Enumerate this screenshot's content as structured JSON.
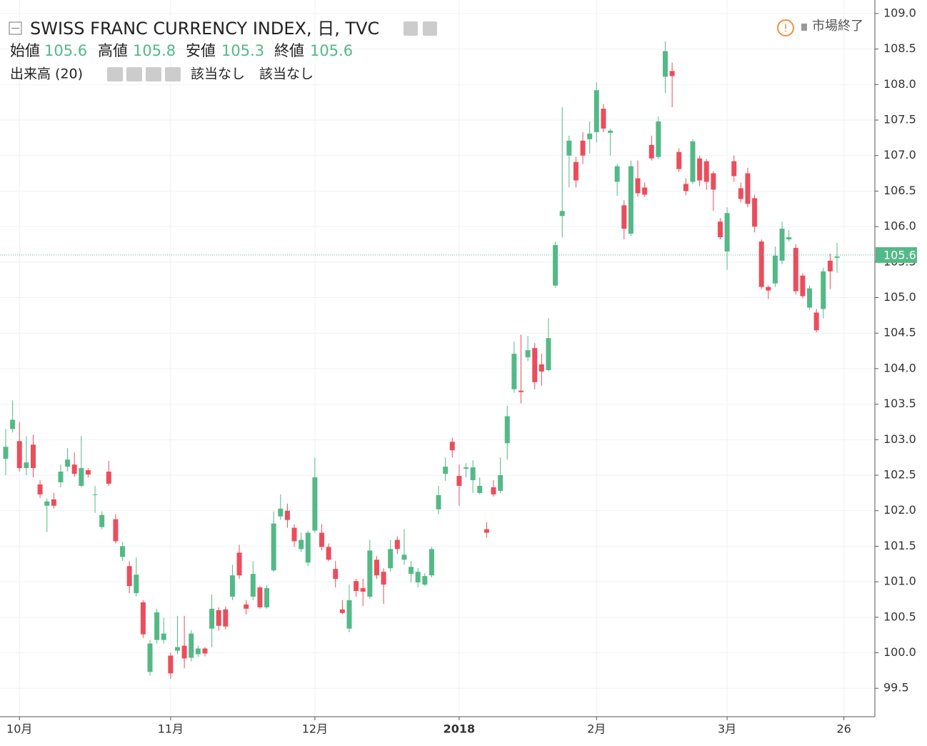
{
  "chart_data": {
    "type": "candlestick",
    "title": "SWISS FRANC CURRENCY INDEX, 日, TVC",
    "ohlc_header": [
      {
        "label": "始値",
        "value": 105.6
      },
      {
        "label": "高値",
        "value": 105.8
      },
      {
        "label": "安値",
        "value": 105.3
      },
      {
        "label": "終値",
        "value": 105.6
      }
    ],
    "indicator": "出来高 (20)",
    "indicator_values": [
      "該当なし",
      "該当なし"
    ],
    "status": "市場終了",
    "up_color": "#53b987",
    "down_color": "#eb4d5c",
    "grid": true,
    "ylim": [
      99.1,
      109.19
    ],
    "yticks": [
      99.5,
      {
        "value": 100,
        "label": "100.0"
      },
      100.5,
      {
        "value": 101,
        "label": "101.0"
      },
      101.5,
      {
        "value": 102,
        "label": "102.0"
      },
      102.5,
      {
        "value": 103,
        "label": "103.0"
      },
      103.5,
      {
        "value": 104,
        "label": "104.0"
      },
      104.5,
      {
        "value": 105,
        "label": "105.0"
      },
      105.5,
      {
        "value": 106,
        "label": "106.0"
      },
      106.5,
      {
        "value": 107,
        "label": "107.0"
      },
      107.5,
      {
        "value": 108,
        "label": "108.0"
      },
      108.5,
      {
        "value": 109,
        "label": "109.0"
      }
    ],
    "last_price": 105.6,
    "categories": [
      null,
      null,
      "10月",
      null,
      null,
      null,
      null,
      null,
      null,
      null,
      null,
      null,
      null,
      null,
      null,
      null,
      null,
      null,
      null,
      null,
      null,
      null,
      null,
      null,
      "11月",
      null,
      null,
      null,
      null,
      null,
      null,
      null,
      null,
      null,
      null,
      null,
      null,
      null,
      null,
      null,
      null,
      null,
      null,
      null,
      null,
      "12月",
      null,
      null,
      null,
      null,
      null,
      null,
      null,
      null,
      null,
      null,
      null,
      null,
      null,
      null,
      null,
      null,
      null,
      null,
      null,
      null,
      "2018",
      null,
      null,
      null,
      null,
      null,
      null,
      null,
      null,
      null,
      null,
      null,
      null,
      null,
      null,
      null,
      null,
      null,
      null,
      null,
      "2月",
      null,
      null,
      null,
      null,
      null,
      null,
      null,
      null,
      null,
      null,
      null,
      null,
      null,
      null,
      null,
      null,
      null,
      null,
      "3月",
      null,
      null,
      null,
      null,
      null,
      null,
      null,
      null,
      null,
      null,
      null,
      null,
      null,
      null,
      null,
      null,
      "26"
    ],
    "open": [
      102.73,
      103.15,
      102.98,
      102.6,
      102.93,
      102.37,
      102.07,
      102.16,
      102.4,
      102.62,
      102.65,
      102.35,
      102.57,
      102.22,
      101.77,
      102.55,
      101.88,
      101.35,
      101.22,
      100.84,
      100.71,
      99.73,
      100.18,
      100.18,
      99.96,
      100.03,
      100.1,
      99.93,
      99.98,
      100.06,
      100.34,
      100.6,
      100.61,
      100.79,
      101.41,
      100.68,
      100.79,
      100.92,
      100.64,
      101.16,
      101.92,
      102.0,
      101.76,
      101.46,
      101.27,
      101.72,
      101.69,
      101.49,
      101.18,
      100.61,
      100.34,
      101.01,
      100.91,
      100.79,
      101.31,
      101.14,
      101.19,
      101.59,
      101.31,
      101.11,
      100.99,
      100.96,
      101.09,
      102.02,
      102.52,
      102.97,
      102.49,
      102.59,
      102.43,
      102.25,
      101.74,
      102.33,
      102.28,
      102.95,
      103.71,
      103.69,
      104.16,
      104.29,
      104.06,
      103.98,
      105.17,
      106.15,
      107.0,
      106.91,
      107.21,
      107.23,
      107.33,
      107.66,
      107.32,
      106.63,
      106.3,
      105.9,
      106.68,
      106.55,
      107.15,
      106.98,
      108.11,
      108.19,
      107.05,
      106.6,
      106.63,
      106.96,
      106.92,
      106.75,
      106.07,
      105.65,
      106.92,
      106.54,
      106.75,
      106.4,
      105.79,
      105.15,
      105.2,
      105.52,
      105.82,
      105.7,
      105.31,
      104.86,
      104.79,
      104.84,
      105.52,
      105.56,
      null
    ],
    "high": [
      103.15,
      103.55,
      103.25,
      103.05,
      103.07,
      102.43,
      102.17,
      102.25,
      102.65,
      102.88,
      102.82,
      103.05,
      102.6,
      102.35,
      101.99,
      102.7,
      101.95,
      101.56,
      101.29,
      101.34,
      100.74,
      100.18,
      100.62,
      100.49,
      100.0,
      100.52,
      100.52,
      100.32,
      100.1,
      100.08,
      100.82,
      100.64,
      100.65,
      101.24,
      101.52,
      100.74,
      101.29,
      100.94,
      100.95,
      101.99,
      102.23,
      102.1,
      101.81,
      101.69,
      101.72,
      102.75,
      101.81,
      101.54,
      101.29,
      100.74,
      100.96,
      101.04,
      101.04,
      101.59,
      101.36,
      101.19,
      101.59,
      101.64,
      101.74,
      101.29,
      101.19,
      101.12,
      101.49,
      102.35,
      102.75,
      103.03,
      102.65,
      102.67,
      102.71,
      102.47,
      101.84,
      102.43,
      102.75,
      103.48,
      104.38,
      104.48,
      104.46,
      104.36,
      104.21,
      104.71,
      105.79,
      107.68,
      107.28,
      106.98,
      107.33,
      107.48,
      108.03,
      107.73,
      107.38,
      106.88,
      106.37,
      106.93,
      106.93,
      106.62,
      107.28,
      107.55,
      108.61,
      108.31,
      107.1,
      106.68,
      107.23,
      107.0,
      106.95,
      106.78,
      106.12,
      106.27,
      107.0,
      106.62,
      106.83,
      106.45,
      105.82,
      105.17,
      105.72,
      106.07,
      105.95,
      105.75,
      105.34,
      105.17,
      104.84,
      105.42,
      105.62,
      105.77,
      null
    ],
    "low": [
      102.5,
      103.1,
      102.55,
      102.5,
      102.47,
      102.18,
      101.7,
      102.03,
      102.33,
      102.55,
      102.48,
      102.33,
      102.47,
      101.97,
      101.74,
      102.35,
      101.54,
      101.29,
      100.84,
      100.79,
      100.21,
      99.68,
      100.13,
      100.13,
      99.63,
      99.98,
      99.78,
      99.88,
      99.94,
      99.95,
      100.08,
      100.31,
      100.33,
      100.74,
      101.04,
      100.54,
      100.74,
      100.62,
      100.62,
      101.14,
      101.87,
      101.76,
      101.49,
      101.42,
      101.22,
      101.69,
      101.44,
      101.29,
      100.92,
      100.54,
      100.29,
      100.79,
      100.66,
      100.76,
      101.04,
      100.69,
      101.14,
      101.39,
      101.24,
      100.99,
      100.92,
      100.94,
      101.06,
      101.95,
      102.42,
      102.75,
      102.07,
      102.47,
      102.25,
      102.23,
      101.62,
      102.2,
      102.25,
      102.72,
      103.66,
      103.51,
      104.11,
      103.71,
      103.76,
      103.96,
      105.14,
      105.85,
      106.55,
      106.55,
      106.88,
      107.03,
      107.18,
      107.33,
      107.0,
      106.43,
      105.82,
      105.87,
      106.42,
      106.42,
      106.93,
      106.95,
      107.88,
      107.68,
      106.77,
      106.44,
      106.6,
      106.57,
      106.52,
      106.22,
      105.82,
      105.39,
      106.63,
      106.34,
      106.27,
      105.92,
      105.12,
      104.98,
      105.15,
      105.47,
      105.79,
      105.04,
      104.99,
      104.83,
      104.51,
      104.71,
      105.12,
      105.35,
      null
    ],
    "close": [
      102.9,
      103.28,
      102.6,
      102.68,
      102.6,
      102.23,
      102.13,
      102.07,
      102.55,
      102.72,
      102.52,
      102.6,
      102.51,
      102.23,
      101.94,
      102.38,
      101.57,
      101.5,
      100.94,
      101.1,
      100.26,
      100.13,
      100.57,
      100.27,
      99.71,
      100.08,
      99.92,
      100.27,
      100.06,
      99.99,
      100.62,
      100.38,
      100.37,
      101.09,
      101.09,
      100.62,
      101.11,
      100.64,
      100.91,
      101.82,
      102.03,
      101.87,
      101.57,
      101.59,
      101.69,
      102.47,
      101.49,
      101.31,
      101.04,
      100.56,
      100.74,
      100.87,
      100.86,
      101.44,
      101.09,
      100.96,
      101.46,
      101.46,
      101.38,
      101.21,
      101.14,
      101.08,
      101.46,
      102.22,
      102.62,
      102.85,
      102.35,
      102.61,
      102.61,
      102.35,
      101.69,
      102.23,
      102.5,
      103.33,
      104.21,
      103.67,
      104.26,
      103.81,
      103.96,
      104.43,
      105.74,
      106.22,
      107.21,
      106.65,
      107.0,
      107.31,
      107.92,
      107.38,
      107.35,
      106.85,
      105.97,
      106.85,
      106.47,
      106.45,
      106.96,
      107.48,
      108.47,
      108.12,
      106.81,
      106.5,
      107.2,
      106.65,
      106.63,
      106.52,
      105.85,
      106.19,
      106.71,
      106.39,
      106.32,
      106.0,
      105.15,
      105.1,
      105.59,
      105.97,
      105.85,
      105.09,
      105.02,
      105.13,
      104.54,
      105.37,
      105.37,
      105.58,
      null
    ]
  }
}
